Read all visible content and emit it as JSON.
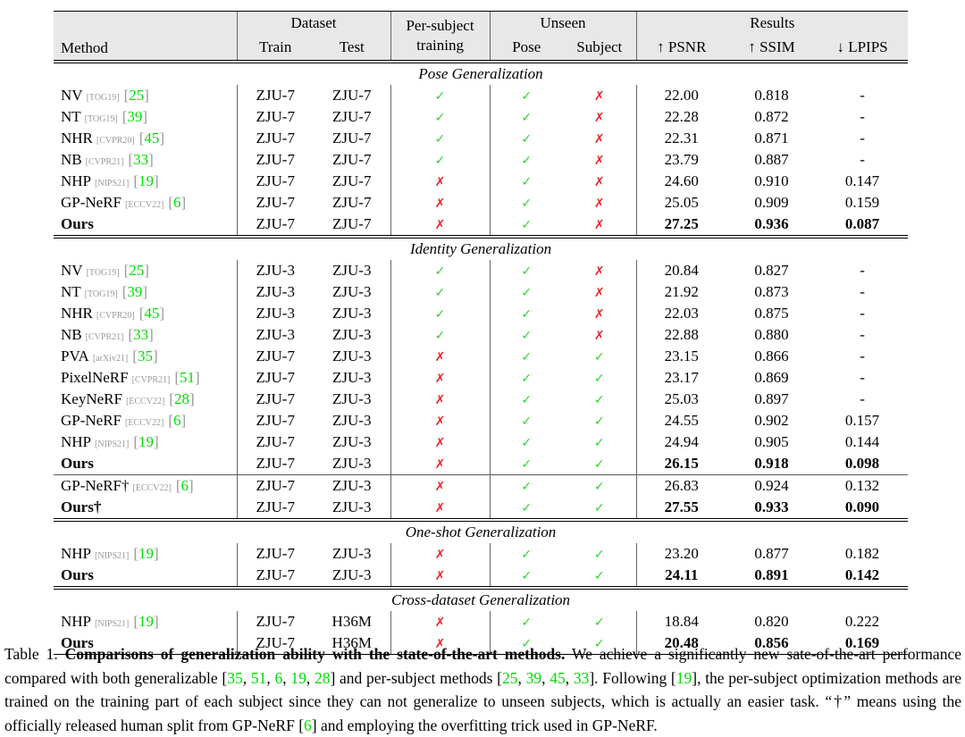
{
  "icons": {
    "check": "✓",
    "cross": "✗"
  },
  "table": {
    "header": {
      "method": "Method",
      "dataset": "Dataset",
      "train": "Train",
      "test": "Test",
      "per_subject_line1": "Per-subject",
      "per_subject_line2": "training",
      "unseen": "Unseen",
      "pose": "Pose",
      "subject": "Subject",
      "results": "Results",
      "psnr": "↑ PSNR",
      "ssim": "↑ SSIM",
      "lpips": "↓ LPIPS"
    },
    "sections": [
      {
        "title": "Pose Generalization",
        "rows": [
          {
            "method": "NV",
            "venue": "[TOG19]",
            "cite": "25",
            "train": "ZJU-7",
            "test": "ZJU-7",
            "per_subject": true,
            "unseen_pose": true,
            "unseen_subject": false,
            "psnr": "22.00",
            "ssim": "0.818",
            "lpips": "-",
            "bold": false,
            "divider_above": false
          },
          {
            "method": "NT",
            "venue": "[TOG19]",
            "cite": "39",
            "train": "ZJU-7",
            "test": "ZJU-7",
            "per_subject": true,
            "unseen_pose": true,
            "unseen_subject": false,
            "psnr": "22.28",
            "ssim": "0.872",
            "lpips": "-",
            "bold": false,
            "divider_above": false
          },
          {
            "method": "NHR",
            "venue": "[CVPR20]",
            "cite": "45",
            "train": "ZJU-7",
            "test": "ZJU-7",
            "per_subject": true,
            "unseen_pose": true,
            "unseen_subject": false,
            "psnr": "22.31",
            "ssim": "0.871",
            "lpips": "-",
            "bold": false,
            "divider_above": false
          },
          {
            "method": "NB",
            "venue": "[CVPR21]",
            "cite": "33",
            "train": "ZJU-7",
            "test": "ZJU-7",
            "per_subject": true,
            "unseen_pose": true,
            "unseen_subject": false,
            "psnr": "23.79",
            "ssim": "0.887",
            "lpips": "-",
            "bold": false,
            "divider_above": false
          },
          {
            "method": "NHP",
            "venue": "[NIPS21]",
            "cite": "19",
            "train": "ZJU-7",
            "test": "ZJU-7",
            "per_subject": false,
            "unseen_pose": true,
            "unseen_subject": false,
            "psnr": "24.60",
            "ssim": "0.910",
            "lpips": "0.147",
            "bold": false,
            "divider_above": false
          },
          {
            "method": "GP-NeRF",
            "venue": "[ECCV22]",
            "cite": "6",
            "train": "ZJU-7",
            "test": "ZJU-7",
            "per_subject": false,
            "unseen_pose": true,
            "unseen_subject": false,
            "psnr": "25.05",
            "ssim": "0.909",
            "lpips": "0.159",
            "bold": false,
            "divider_above": false
          },
          {
            "method": "Ours",
            "venue": null,
            "cite": null,
            "train": "ZJU-7",
            "test": "ZJU-7",
            "per_subject": false,
            "unseen_pose": true,
            "unseen_subject": false,
            "psnr": "27.25",
            "ssim": "0.936",
            "lpips": "0.087",
            "bold": true,
            "divider_above": false
          }
        ]
      },
      {
        "title": "Identity Generalization",
        "rows": [
          {
            "method": "NV",
            "venue": "[TOG19]",
            "cite": "25",
            "train": "ZJU-3",
            "test": "ZJU-3",
            "per_subject": true,
            "unseen_pose": true,
            "unseen_subject": false,
            "psnr": "20.84",
            "ssim": "0.827",
            "lpips": "-",
            "bold": false,
            "divider_above": false
          },
          {
            "method": "NT",
            "venue": "[TOG19]",
            "cite": "39",
            "train": "ZJU-3",
            "test": "ZJU-3",
            "per_subject": true,
            "unseen_pose": true,
            "unseen_subject": false,
            "psnr": "21.92",
            "ssim": "0.873",
            "lpips": "-",
            "bold": false,
            "divider_above": false
          },
          {
            "method": "NHR",
            "venue": "[CVPR20]",
            "cite": "45",
            "train": "ZJU-3",
            "test": "ZJU-3",
            "per_subject": true,
            "unseen_pose": true,
            "unseen_subject": false,
            "psnr": "22.03",
            "ssim": "0.875",
            "lpips": "-",
            "bold": false,
            "divider_above": false
          },
          {
            "method": "NB",
            "venue": "[CVPR21]",
            "cite": "33",
            "train": "ZJU-3",
            "test": "ZJU-3",
            "per_subject": true,
            "unseen_pose": true,
            "unseen_subject": false,
            "psnr": "22.88",
            "ssim": "0.880",
            "lpips": "-",
            "bold": false,
            "divider_above": false
          },
          {
            "method": "PVA",
            "venue": "[arXiv21]",
            "cite": "35",
            "train": "ZJU-7",
            "test": "ZJU-3",
            "per_subject": false,
            "unseen_pose": true,
            "unseen_subject": true,
            "psnr": "23.15",
            "ssim": "0.866",
            "lpips": "-",
            "bold": false,
            "divider_above": false
          },
          {
            "method": "PixelNeRF",
            "venue": "[CVPR21]",
            "cite": "51",
            "train": "ZJU-7",
            "test": "ZJU-3",
            "per_subject": false,
            "unseen_pose": true,
            "unseen_subject": true,
            "psnr": "23.17",
            "ssim": "0.869",
            "lpips": "-",
            "bold": false,
            "divider_above": false
          },
          {
            "method": "KeyNeRF",
            "venue": "[ECCV22]",
            "cite": "28",
            "train": "ZJU-7",
            "test": "ZJU-3",
            "per_subject": false,
            "unseen_pose": true,
            "unseen_subject": true,
            "psnr": "25.03",
            "ssim": "0.897",
            "lpips": "-",
            "bold": false,
            "divider_above": false
          },
          {
            "method": "GP-NeRF",
            "venue": "[ECCV22]",
            "cite": "6",
            "train": "ZJU-7",
            "test": "ZJU-3",
            "per_subject": false,
            "unseen_pose": true,
            "unseen_subject": true,
            "psnr": "24.55",
            "ssim": "0.902",
            "lpips": "0.157",
            "bold": false,
            "divider_above": false
          },
          {
            "method": "NHP",
            "venue": "[NIPS21]",
            "cite": "19",
            "train": "ZJU-7",
            "test": "ZJU-3",
            "per_subject": false,
            "unseen_pose": true,
            "unseen_subject": true,
            "psnr": "24.94",
            "ssim": "0.905",
            "lpips": "0.144",
            "bold": false,
            "divider_above": false
          },
          {
            "method": "Ours",
            "venue": null,
            "cite": null,
            "train": "ZJU-7",
            "test": "ZJU-3",
            "per_subject": false,
            "unseen_pose": true,
            "unseen_subject": true,
            "psnr": "26.15",
            "ssim": "0.918",
            "lpips": "0.098",
            "bold": true,
            "divider_above": false
          },
          {
            "method": "GP-NeRF†",
            "venue": "[ECCV22]",
            "cite": "6",
            "train": "ZJU-7",
            "test": "ZJU-3",
            "per_subject": false,
            "unseen_pose": true,
            "unseen_subject": true,
            "psnr": "26.83",
            "ssim": "0.924",
            "lpips": "0.132",
            "bold": false,
            "divider_above": true
          },
          {
            "method": "Ours†",
            "venue": null,
            "cite": null,
            "train": "ZJU-7",
            "test": "ZJU-3",
            "per_subject": false,
            "unseen_pose": true,
            "unseen_subject": true,
            "psnr": "27.55",
            "ssim": "0.933",
            "lpips": "0.090",
            "bold": true,
            "divider_above": false
          }
        ]
      },
      {
        "title": "One-shot Generalization",
        "rows": [
          {
            "method": "NHP",
            "venue": "[NIPS21]",
            "cite": "19",
            "train": "ZJU-7",
            "test": "ZJU-3",
            "per_subject": false,
            "unseen_pose": true,
            "unseen_subject": true,
            "psnr": "23.20",
            "ssim": "0.877",
            "lpips": "0.182",
            "bold": false,
            "divider_above": false
          },
          {
            "method": "Ours",
            "venue": null,
            "cite": null,
            "train": "ZJU-7",
            "test": "ZJU-3",
            "per_subject": false,
            "unseen_pose": true,
            "unseen_subject": true,
            "psnr": "24.11",
            "ssim": "0.891",
            "lpips": "0.142",
            "bold": true,
            "divider_above": false
          }
        ]
      },
      {
        "title": "Cross-dataset Generalization",
        "rows": [
          {
            "method": "NHP",
            "venue": "[NIPS21]",
            "cite": "19",
            "train": "ZJU-7",
            "test": "H36M",
            "per_subject": false,
            "unseen_pose": true,
            "unseen_subject": true,
            "psnr": "18.84",
            "ssim": "0.820",
            "lpips": "0.222",
            "bold": false,
            "divider_above": false
          },
          {
            "method": "Ours",
            "venue": null,
            "cite": null,
            "train": "ZJU-7",
            "test": "H36M",
            "per_subject": false,
            "unseen_pose": true,
            "unseen_subject": true,
            "psnr": "20.48",
            "ssim": "0.856",
            "lpips": "0.169",
            "bold": true,
            "divider_above": false
          }
        ]
      }
    ]
  },
  "caption": {
    "segments": [
      {
        "t": "Table 1.   "
      },
      {
        "t": "Comparisons of generalization ability with the state-of-the-art methods.",
        "style": "bold"
      },
      {
        "t": "  We achieve a significantly new sate-of-the-art performance compared with both generalizable ["
      },
      {
        "t": "35",
        "style": "green"
      },
      {
        "t": ", "
      },
      {
        "t": "51",
        "style": "green"
      },
      {
        "t": ", "
      },
      {
        "t": "6",
        "style": "green"
      },
      {
        "t": ", "
      },
      {
        "t": "19",
        "style": "green"
      },
      {
        "t": ", "
      },
      {
        "t": "28",
        "style": "green"
      },
      {
        "t": "] and per-subject methods ["
      },
      {
        "t": "25",
        "style": "green"
      },
      {
        "t": ", "
      },
      {
        "t": "39",
        "style": "green"
      },
      {
        "t": ", "
      },
      {
        "t": "45",
        "style": "green"
      },
      {
        "t": ", "
      },
      {
        "t": "33",
        "style": "green"
      },
      {
        "t": "]. Following ["
      },
      {
        "t": "19",
        "style": "green"
      },
      {
        "t": "], the per-subject optimization methods are trained on the training part of each subject since they can not generalize to unseen subjects, which is actually an easier task. “†” means using the officially released human split from GP-NeRF ["
      },
      {
        "t": "6",
        "style": "green"
      },
      {
        "t": "] and employing the overfitting trick used in GP-NeRF."
      }
    ]
  }
}
